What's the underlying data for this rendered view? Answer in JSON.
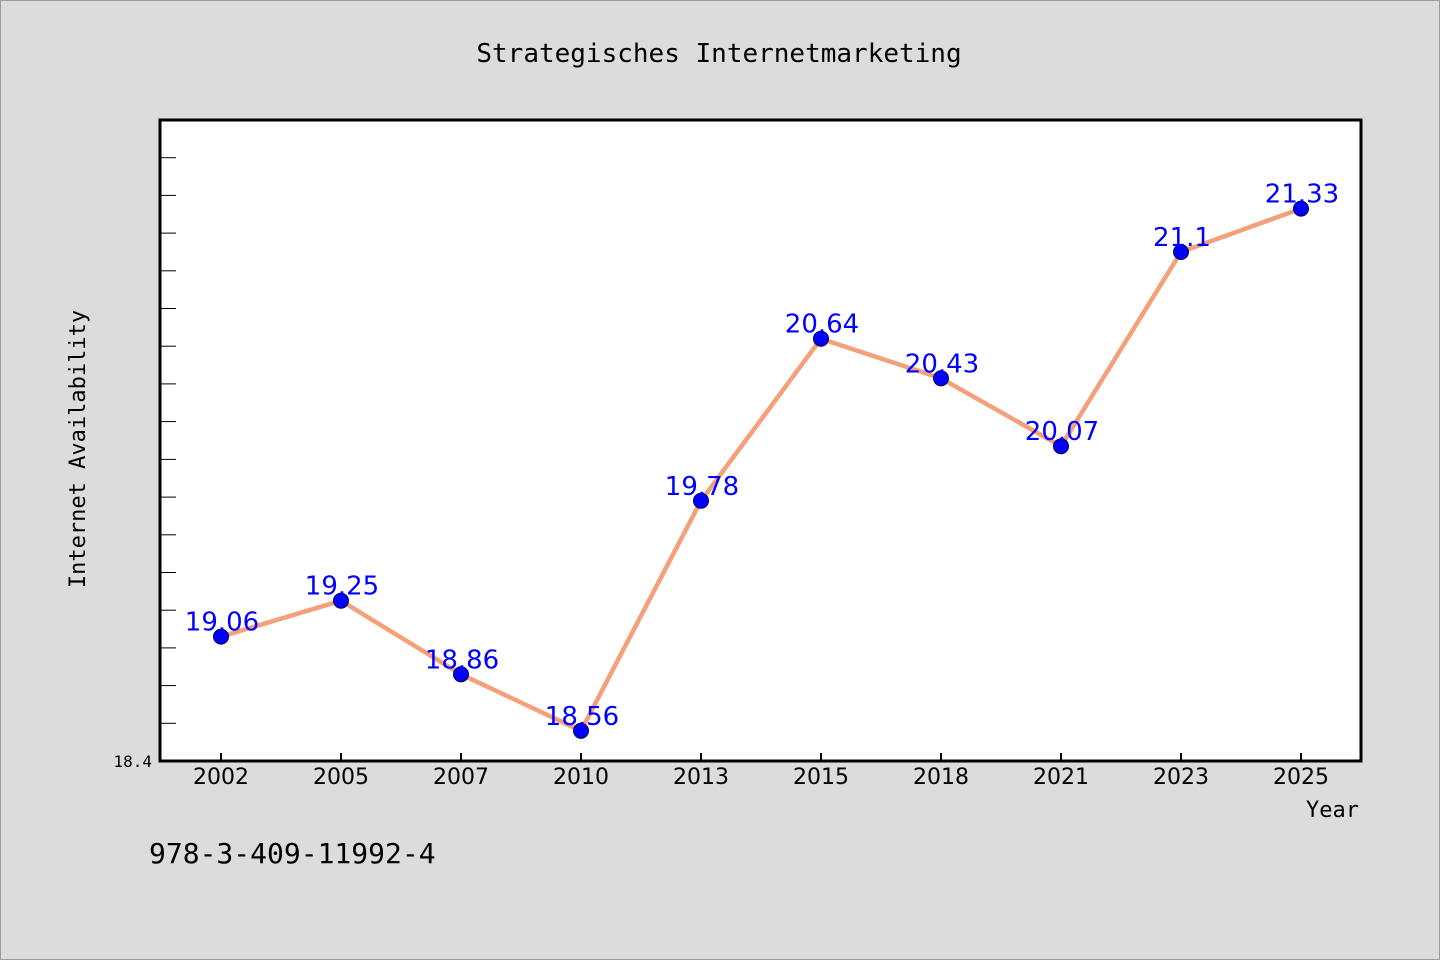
{
  "chart_data": {
    "type": "line",
    "title": "Strategisches Internetmarketing",
    "xlabel": "Year",
    "ylabel": "Internet Availability",
    "categories": [
      "2002",
      "2005",
      "2007",
      "2010",
      "2013",
      "2015",
      "2018",
      "2021",
      "2023",
      "2025"
    ],
    "values": [
      19.06,
      19.25,
      18.86,
      18.56,
      19.78,
      20.64,
      20.43,
      20.07,
      21.1,
      21.33
    ],
    "data_labels": [
      "19.06",
      "19.25",
      "18.86",
      "18.56",
      "19.78",
      "20.64",
      "20.43",
      "20.07",
      "21.1",
      "21.33"
    ],
    "ylim": [
      18.4,
      21.8
    ],
    "y_tick_label": "18.4",
    "grid": false,
    "legend": "none",
    "colors": {
      "line": "#f4a07a",
      "marker": "#0000ff",
      "data_label": "#0000ff",
      "background": "#dcdcdc",
      "plot_background": "#ffffff"
    }
  },
  "footer": {
    "isbn": "978-3-409-11992-4"
  }
}
